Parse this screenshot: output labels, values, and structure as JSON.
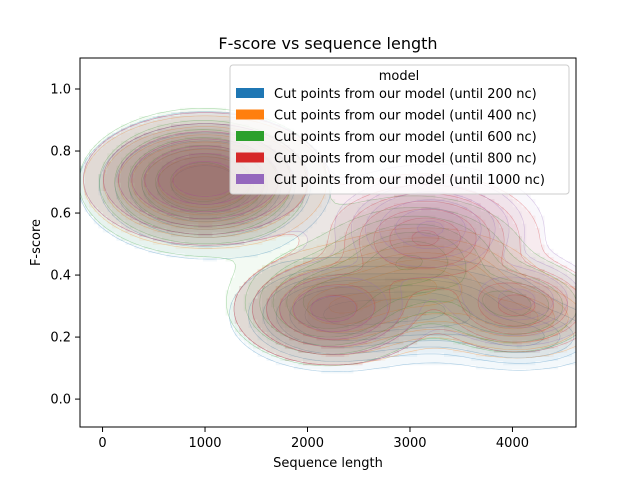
{
  "chart_data": {
    "type": "kde-density",
    "title": "F-score vs sequence length",
    "xlabel": "Sequence length",
    "ylabel": "F-score",
    "xlim": [
      -220,
      4620
    ],
    "ylim": [
      -0.09,
      1.1
    ],
    "xticks": [
      0,
      1000,
      2000,
      3000,
      4000
    ],
    "yticks": [
      0.0,
      0.2,
      0.4,
      0.6,
      0.8,
      1.0
    ],
    "grid": false,
    "legend": {
      "title": "model",
      "placement": "top-right"
    },
    "series": [
      {
        "name": "Cut points from our model (until 200 nc)",
        "color": "#1f77b4",
        "modes": [
          {
            "x": 1000,
            "y": 0.69,
            "sx": 520,
            "sy": 0.1,
            "w": 1.0
          },
          {
            "x": 2250,
            "y": 0.27,
            "sx": 450,
            "sy": 0.08,
            "w": 0.75
          },
          {
            "x": 3200,
            "y": 0.29,
            "sx": 500,
            "sy": 0.07,
            "w": 0.8
          },
          {
            "x": 4100,
            "y": 0.2,
            "sx": 380,
            "sy": 0.05,
            "w": 0.55
          }
        ]
      },
      {
        "name": "Cut points from our model (until 400 nc)",
        "color": "#ff7f0e",
        "modes": [
          {
            "x": 1000,
            "y": 0.7,
            "sx": 500,
            "sy": 0.09,
            "w": 1.0
          },
          {
            "x": 2250,
            "y": 0.29,
            "sx": 430,
            "sy": 0.08,
            "w": 0.75
          },
          {
            "x": 3150,
            "y": 0.37,
            "sx": 480,
            "sy": 0.08,
            "w": 0.8
          },
          {
            "x": 4050,
            "y": 0.26,
            "sx": 380,
            "sy": 0.06,
            "w": 0.55
          }
        ]
      },
      {
        "name": "Cut points from our model (until 600 nc)",
        "color": "#2ca02c",
        "modes": [
          {
            "x": 980,
            "y": 0.7,
            "sx": 510,
            "sy": 0.1,
            "w": 1.0
          },
          {
            "x": 2200,
            "y": 0.31,
            "sx": 440,
            "sy": 0.09,
            "w": 0.75
          },
          {
            "x": 3050,
            "y": 0.45,
            "sx": 470,
            "sy": 0.09,
            "w": 0.8
          },
          {
            "x": 4000,
            "y": 0.3,
            "sx": 380,
            "sy": 0.07,
            "w": 0.55
          }
        ]
      },
      {
        "name": "Cut points from our model (until 800 nc)",
        "color": "#d62728",
        "modes": [
          {
            "x": 1000,
            "y": 0.71,
            "sx": 500,
            "sy": 0.09,
            "w": 1.0
          },
          {
            "x": 2250,
            "y": 0.29,
            "sx": 430,
            "sy": 0.08,
            "w": 0.75
          },
          {
            "x": 3150,
            "y": 0.52,
            "sx": 480,
            "sy": 0.09,
            "w": 0.85
          },
          {
            "x": 4050,
            "y": 0.3,
            "sx": 380,
            "sy": 0.07,
            "w": 0.55
          }
        ]
      },
      {
        "name": "Cut points from our model (until 1000 nc)",
        "color": "#9467bd",
        "modes": [
          {
            "x": 1000,
            "y": 0.71,
            "sx": 500,
            "sy": 0.09,
            "w": 1.0
          },
          {
            "x": 2250,
            "y": 0.29,
            "sx": 430,
            "sy": 0.08,
            "w": 0.75
          },
          {
            "x": 3200,
            "y": 0.55,
            "sx": 480,
            "sy": 0.09,
            "w": 0.85
          },
          {
            "x": 4050,
            "y": 0.32,
            "sx": 380,
            "sy": 0.07,
            "w": 0.55
          }
        ]
      }
    ]
  }
}
